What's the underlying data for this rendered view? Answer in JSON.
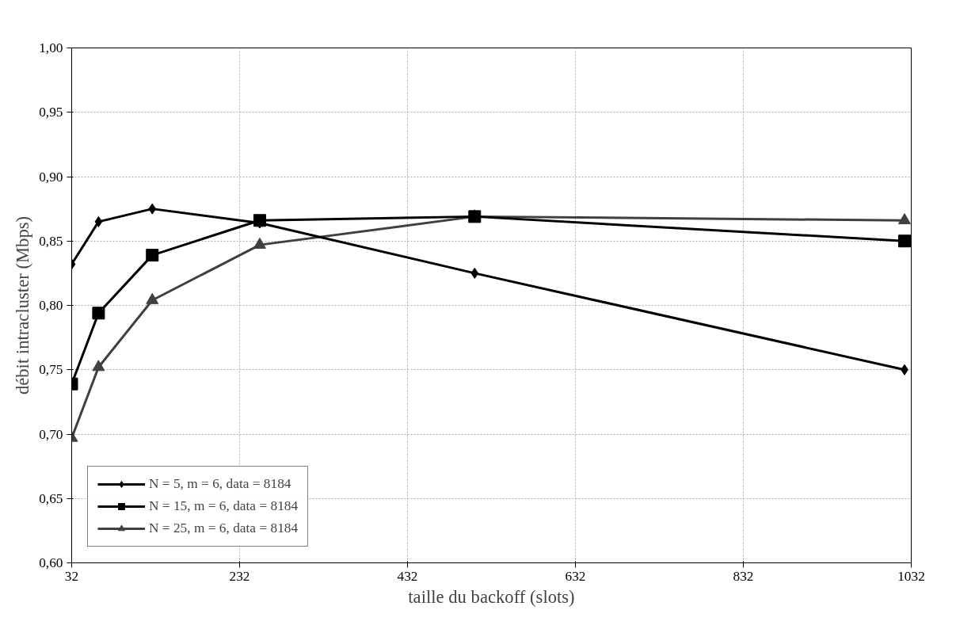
{
  "chart_data": {
    "type": "line",
    "xlabel": "taille du backoff (slots)",
    "ylabel": "débit intracluster (Mbps)",
    "x": [
      32,
      64,
      128,
      256,
      512,
      1024
    ],
    "series": [
      {
        "name": "N = 5, m = 6, data = 8184",
        "color": "#000000",
        "marker": "diamond",
        "values": [
          0.832,
          0.865,
          0.875,
          0.864,
          0.825,
          0.75
        ]
      },
      {
        "name": "N = 15, m = 6, data = 8184",
        "color": "#000000",
        "marker": "square",
        "values": [
          0.739,
          0.794,
          0.839,
          0.866,
          0.869,
          0.85
        ]
      },
      {
        "name": "N = 25, m = 6, data = 8184",
        "color": "#404040",
        "marker": "triangle",
        "values": [
          0.697,
          0.752,
          0.804,
          0.847,
          0.869,
          0.866
        ]
      }
    ],
    "xlim": [
      32,
      1032
    ],
    "xticks": [
      32,
      232,
      432,
      632,
      832,
      1032
    ],
    "ylim": [
      0.6,
      1.0
    ],
    "yticks": [
      {
        "value": 0.6,
        "label": "0,60"
      },
      {
        "value": 0.65,
        "label": "0,65"
      },
      {
        "value": 0.7,
        "label": "0,70"
      },
      {
        "value": 0.75,
        "label": "0,75"
      },
      {
        "value": 0.8,
        "label": "0,80"
      },
      {
        "value": 0.85,
        "label": "0,85"
      },
      {
        "value": 0.9,
        "label": "0,90"
      },
      {
        "value": 0.95,
        "label": "0,95"
      },
      {
        "value": 1.0,
        "label": "1,00"
      }
    ],
    "grid": true,
    "legend": "bottom left",
    "line_style": "solid"
  }
}
